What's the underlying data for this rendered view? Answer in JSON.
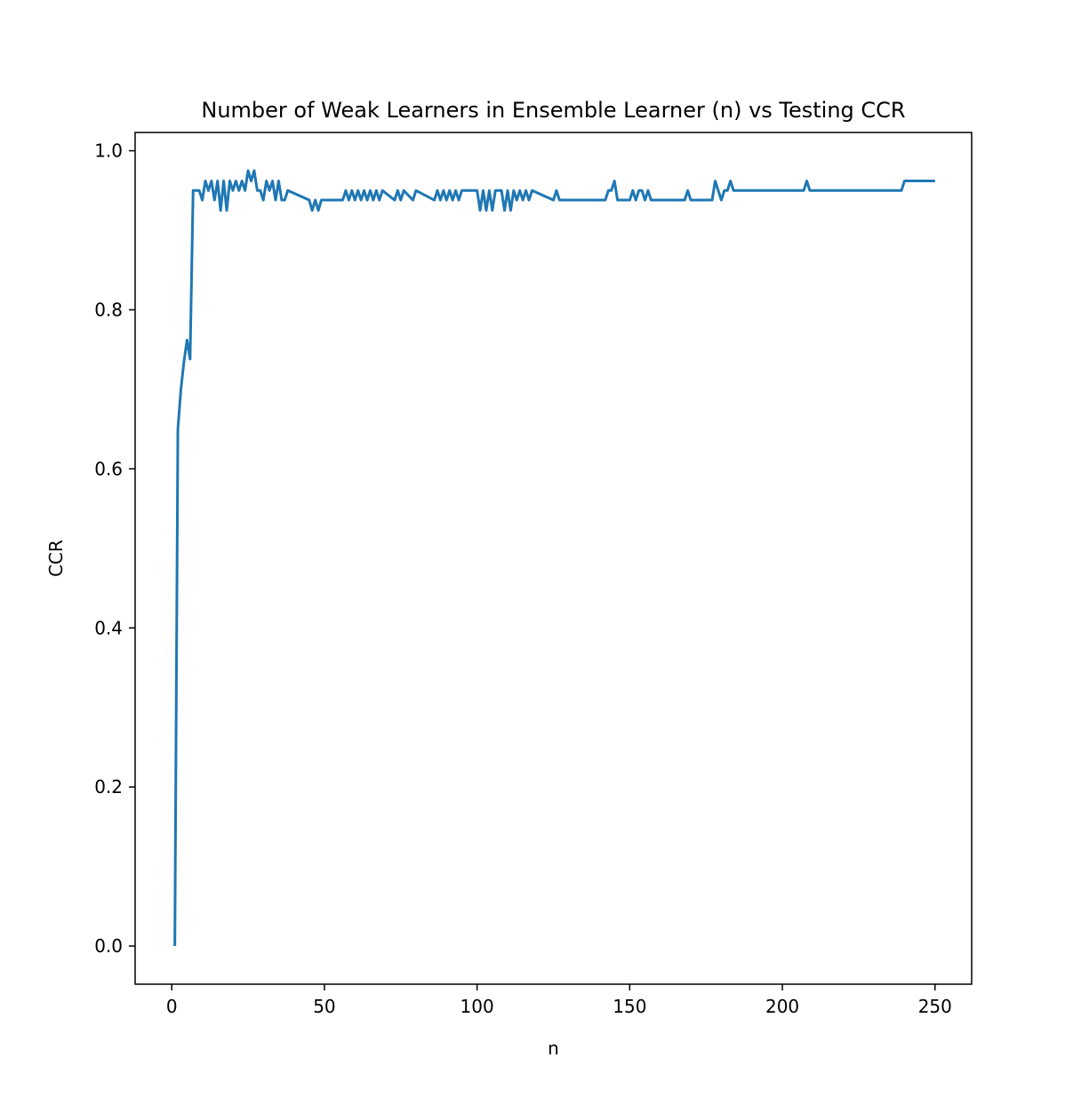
{
  "chart_data": {
    "type": "line",
    "title": "Number of Weak Learners in Ensemble Learner (n) vs Testing CCR",
    "xlabel": "n",
    "ylabel": "CCR",
    "xlim": [
      -12,
      262
    ],
    "ylim": [
      -0.048,
      1.023
    ],
    "xticks": [
      0,
      50,
      100,
      150,
      200,
      250
    ],
    "xtick_labels": [
      "0",
      "50",
      "100",
      "150",
      "200",
      "250"
    ],
    "yticks": [
      0.0,
      0.2,
      0.4,
      0.6,
      0.8,
      1.0
    ],
    "ytick_labels": [
      "0.0",
      "0.2",
      "0.4",
      "0.6",
      "0.8",
      "1.0"
    ],
    "grid": false,
    "legend": "none",
    "series_color": "#1f77b4",
    "series": [
      {
        "x": [
          1,
          2,
          3,
          4,
          5,
          6,
          7,
          8,
          9,
          10,
          11,
          12,
          13,
          14,
          15,
          16,
          17,
          18,
          19,
          20,
          21,
          22,
          23,
          24,
          25,
          26,
          27,
          28,
          29,
          30,
          31,
          32,
          33,
          34,
          35,
          36,
          37,
          38,
          45,
          46,
          47,
          48,
          49,
          56,
          57,
          58,
          59,
          60,
          61,
          62,
          63,
          64,
          65,
          66,
          67,
          68,
          69,
          73,
          74,
          75,
          76,
          79,
          80,
          86,
          87,
          88,
          89,
          90,
          91,
          92,
          93,
          94,
          95,
          96,
          100,
          101,
          102,
          103,
          104,
          105,
          106,
          107,
          108,
          109,
          110,
          111,
          112,
          113,
          114,
          115,
          116,
          117,
          118,
          125,
          126,
          127,
          142,
          143,
          144,
          145,
          146,
          150,
          151,
          152,
          153,
          154,
          155,
          156,
          157,
          168,
          169,
          170,
          177,
          178,
          179,
          180,
          181,
          182,
          183,
          184,
          207,
          208,
          209,
          239,
          240,
          250
        ],
        "y": [
          0.0,
          0.65,
          0.7,
          0.735,
          0.762,
          0.738,
          0.95,
          0.95,
          0.95,
          0.938,
          0.962,
          0.95,
          0.962,
          0.938,
          0.962,
          0.925,
          0.962,
          0.925,
          0.962,
          0.95,
          0.962,
          0.95,
          0.962,
          0.95,
          0.975,
          0.962,
          0.975,
          0.95,
          0.95,
          0.938,
          0.962,
          0.95,
          0.962,
          0.938,
          0.962,
          0.938,
          0.938,
          0.95,
          0.938,
          0.925,
          0.938,
          0.925,
          0.938,
          0.938,
          0.95,
          0.938,
          0.95,
          0.938,
          0.95,
          0.938,
          0.95,
          0.938,
          0.95,
          0.938,
          0.95,
          0.938,
          0.95,
          0.938,
          0.95,
          0.938,
          0.95,
          0.938,
          0.95,
          0.938,
          0.95,
          0.938,
          0.95,
          0.938,
          0.95,
          0.938,
          0.95,
          0.938,
          0.95,
          0.95,
          0.95,
          0.925,
          0.95,
          0.925,
          0.95,
          0.925,
          0.95,
          0.95,
          0.95,
          0.925,
          0.95,
          0.925,
          0.95,
          0.938,
          0.95,
          0.938,
          0.95,
          0.938,
          0.95,
          0.938,
          0.95,
          0.938,
          0.938,
          0.95,
          0.95,
          0.962,
          0.938,
          0.938,
          0.95,
          0.938,
          0.95,
          0.95,
          0.938,
          0.95,
          0.938,
          0.938,
          0.95,
          0.938,
          0.938,
          0.962,
          0.95,
          0.938,
          0.95,
          0.95,
          0.962,
          0.95,
          0.95,
          0.962,
          0.95,
          0.95,
          0.962,
          0.962
        ]
      }
    ]
  }
}
